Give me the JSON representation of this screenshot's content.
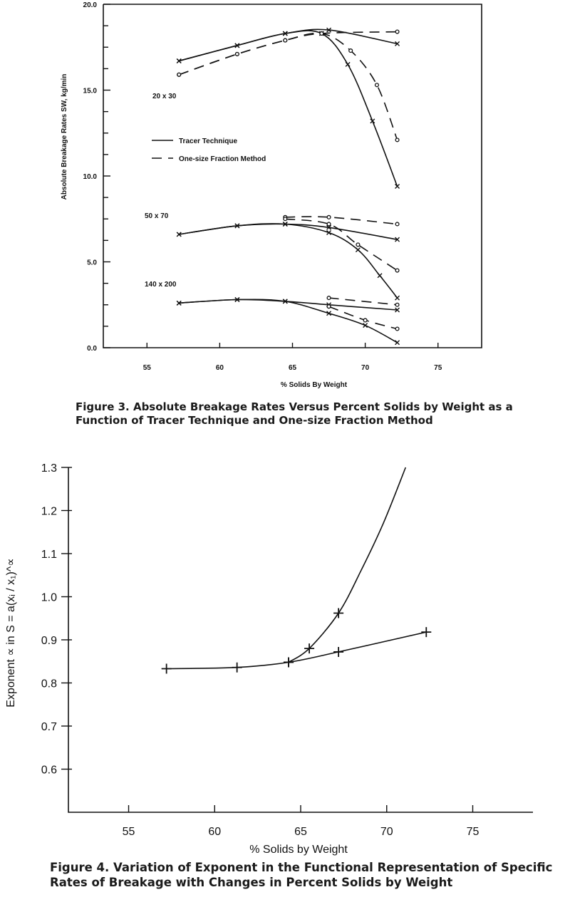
{
  "chart_data": [
    {
      "type": "line",
      "xlabel": "% Solids By Weight",
      "ylabel": "Absolute Breakage Rates SW, kg/min",
      "xlim": [
        52,
        78
      ],
      "ylim": [
        0,
        20
      ],
      "xticks": [
        55,
        60,
        65,
        70,
        75
      ],
      "yticks": [
        0,
        5,
        10,
        15,
        20
      ],
      "ytick_labels": [
        "0.0",
        "5.0",
        "10.0",
        "15.0",
        "20.0"
      ],
      "grid": false,
      "legend": {
        "placement": "left-middle",
        "entries": [
          {
            "label": "Tracer Technique",
            "style": "solid"
          },
          {
            "label": "One-size Fraction Method",
            "style": "dashed"
          }
        ]
      },
      "annotations": [
        "20 x 30",
        "50 x 70",
        "140 x 200"
      ],
      "series": [
        {
          "style": "solid",
          "marker": "x",
          "x": [
            57.2,
            61.2,
            64.5,
            67.5,
            72.2
          ],
          "y": [
            16.7,
            17.6,
            18.3,
            18.5,
            17.7
          ]
        },
        {
          "style": "solid",
          "marker": "x",
          "x": [
            57.2,
            61.2,
            64.5,
            67.0,
            68.8,
            70.5,
            72.2
          ],
          "y": [
            16.7,
            17.6,
            18.3,
            18.3,
            16.5,
            13.2,
            9.4
          ]
        },
        {
          "style": "dashed",
          "marker": "o",
          "x": [
            57.2,
            61.2,
            64.5,
            67.0,
            72.2
          ],
          "y": [
            15.9,
            17.1,
            17.9,
            18.3,
            18.4
          ]
        },
        {
          "style": "dashed",
          "marker": "o",
          "x": [
            57.2,
            61.2,
            64.5,
            67.0,
            69.0,
            70.8,
            72.2
          ],
          "y": [
            15.9,
            17.1,
            17.9,
            18.3,
            17.3,
            15.3,
            12.1
          ]
        },
        {
          "style": "solid",
          "marker": "x",
          "x": [
            57.2,
            61.2,
            64.5,
            67.5,
            72.2
          ],
          "y": [
            6.6,
            7.1,
            7.2,
            7.0,
            6.3
          ]
        },
        {
          "style": "solid",
          "marker": "x",
          "x": [
            57.2,
            61.2,
            64.5,
            67.5,
            69.5,
            71.0,
            72.2
          ],
          "y": [
            6.6,
            7.1,
            7.2,
            6.7,
            5.7,
            4.2,
            2.9
          ]
        },
        {
          "style": "dashed",
          "marker": "o",
          "x": [
            64.5,
            67.5,
            72.2
          ],
          "y": [
            7.6,
            7.6,
            7.2
          ]
        },
        {
          "style": "dashed",
          "marker": "o",
          "x": [
            64.5,
            67.5,
            69.5,
            72.2
          ],
          "y": [
            7.5,
            7.2,
            6.0,
            4.5
          ]
        },
        {
          "style": "solid",
          "marker": "x",
          "x": [
            57.2,
            61.2,
            64.5,
            67.5,
            72.2
          ],
          "y": [
            2.6,
            2.8,
            2.7,
            2.5,
            2.2
          ]
        },
        {
          "style": "solid",
          "marker": "x",
          "x": [
            57.2,
            61.2,
            64.5,
            67.5,
            70.0,
            72.2
          ],
          "y": [
            2.6,
            2.8,
            2.7,
            2.0,
            1.3,
            0.3
          ]
        },
        {
          "style": "dashed",
          "marker": "o",
          "x": [
            67.5,
            72.2
          ],
          "y": [
            2.9,
            2.5
          ]
        },
        {
          "style": "dashed",
          "marker": "o",
          "x": [
            67.5,
            70.0,
            72.2
          ],
          "y": [
            2.4,
            1.6,
            1.1
          ]
        }
      ]
    },
    {
      "type": "line",
      "xlabel": "% Solids by Weight",
      "ylabel": "Exponent ∝ in S = a(xᵢ / x₁)^∝",
      "xlim": [
        51.5,
        78.5
      ],
      "ylim": [
        0.5,
        1.3
      ],
      "xticks": [
        55,
        60,
        65,
        70,
        75
      ],
      "yticks": [
        0.6,
        0.7,
        0.8,
        0.9,
        1.0,
        1.1,
        1.2,
        1.3
      ],
      "ytick_labels": [
        "0.6",
        "0.7",
        "0.8",
        "0.9",
        "1.0",
        "1.1",
        "1.2",
        "1.3"
      ],
      "grid": false,
      "series": [
        {
          "marker": "+",
          "x": [
            57.2,
            61.3,
            64.3,
            67.2,
            72.3
          ],
          "y": [
            0.833,
            0.836,
            0.848,
            0.872,
            0.918
          ]
        },
        {
          "marker": "+",
          "x": [
            64.3,
            65.5,
            67.2,
            68.5,
            69.8,
            71.1
          ],
          "y": [
            0.848,
            0.88,
            0.962,
            1.06,
            1.17,
            1.3
          ]
        }
      ]
    }
  ],
  "figure3": {
    "caption": "Figure 3.  Absolute Breakage Rates Versus Percent Solids by Weight as a Function of Tracer Technique and One-size Fraction Method"
  },
  "figure4": {
    "caption": "Figure 4.  Variation of Exponent in the Functional Representation of Specific Rates of Breakage with Changes in Percent Solids by Weight"
  }
}
